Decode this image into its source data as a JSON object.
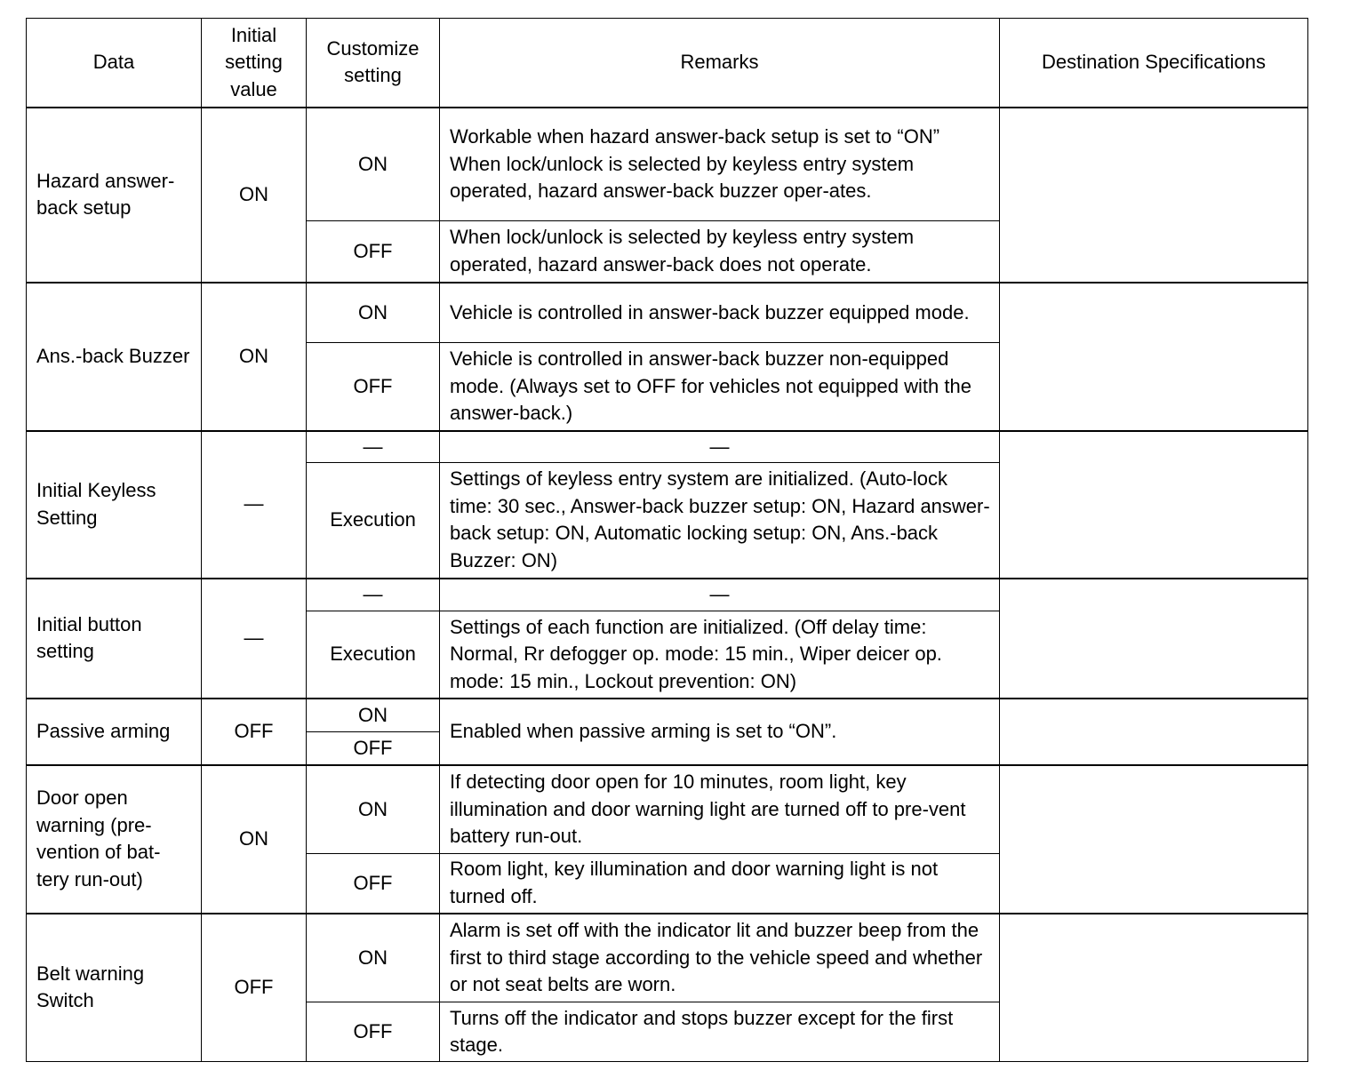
{
  "header": {
    "data": "Data",
    "initial": "Initial setting value",
    "customize": "Customize setting",
    "remarks": "Remarks",
    "destination": "Destination Specifications"
  },
  "rows": [
    {
      "data": "Hazard answer-back setup",
      "initial": "ON",
      "options": [
        {
          "setting": "ON",
          "remarks": "Workable when hazard answer-back setup is set to “ON” When lock/unlock is selected by keyless entry system operated, hazard answer-back buzzer oper-ates."
        },
        {
          "setting": "OFF",
          "remarks": "When lock/unlock is selected by keyless entry system operated, hazard answer-back does not operate."
        }
      ],
      "destination": ""
    },
    {
      "data": "Ans.-back Buzzer",
      "initial": "ON",
      "options": [
        {
          "setting": "ON",
          "remarks": "Vehicle is controlled in answer-back buzzer equipped mode."
        },
        {
          "setting": "OFF",
          "remarks": "Vehicle is controlled in answer-back buzzer non-equipped mode. (Always set to OFF for vehicles not equipped with the answer-back.)"
        }
      ],
      "destination": ""
    },
    {
      "data": "Initial Keyless Setting",
      "initial": "—",
      "options": [
        {
          "setting": "—",
          "remarks": "—"
        },
        {
          "setting": "Execution",
          "remarks": "Settings of keyless entry system are initialized. (Auto-lock time: 30 sec., Answer-back buzzer setup: ON, Hazard answer-back setup: ON, Automatic locking setup: ON, Ans.-back Buzzer: ON)"
        }
      ],
      "destination": ""
    },
    {
      "data": "Initial button setting",
      "initial": "—",
      "options": [
        {
          "setting": "—",
          "remarks": "—"
        },
        {
          "setting": "Execution",
          "remarks": "Settings of each function are initialized. (Off delay time: Normal, Rr defogger op. mode: 15 min., Wiper deicer op. mode: 15 min., Lockout prevention: ON)"
        }
      ],
      "destination": ""
    },
    {
      "data": "Passive arming",
      "initial": "OFF",
      "options": [
        {
          "setting": "ON",
          "remarks": "Enabled when passive arming is set to “ON”."
        },
        {
          "setting": "OFF"
        }
      ],
      "destination": ""
    },
    {
      "data": "Door open warning (pre-vention of bat-tery run-out)",
      "initial": "ON",
      "options": [
        {
          "setting": "ON",
          "remarks": "If detecting door open for 10 minutes, room light, key illumination and door warning light are turned off to pre-vent battery run-out."
        },
        {
          "setting": "OFF",
          "remarks": "Room light, key illumination and door warning light is not turned off."
        }
      ],
      "destination": ""
    },
    {
      "data": "Belt warning Switch",
      "initial": "OFF",
      "options": [
        {
          "setting": "ON",
          "remarks": "Alarm is set off with the indicator lit and buzzer beep from the first to third stage according to the vehicle speed and whether or not seat belts are worn."
        },
        {
          "setting": "OFF",
          "remarks": "Turns off the indicator and stops buzzer except for the first stage."
        }
      ],
      "destination": ""
    }
  ]
}
